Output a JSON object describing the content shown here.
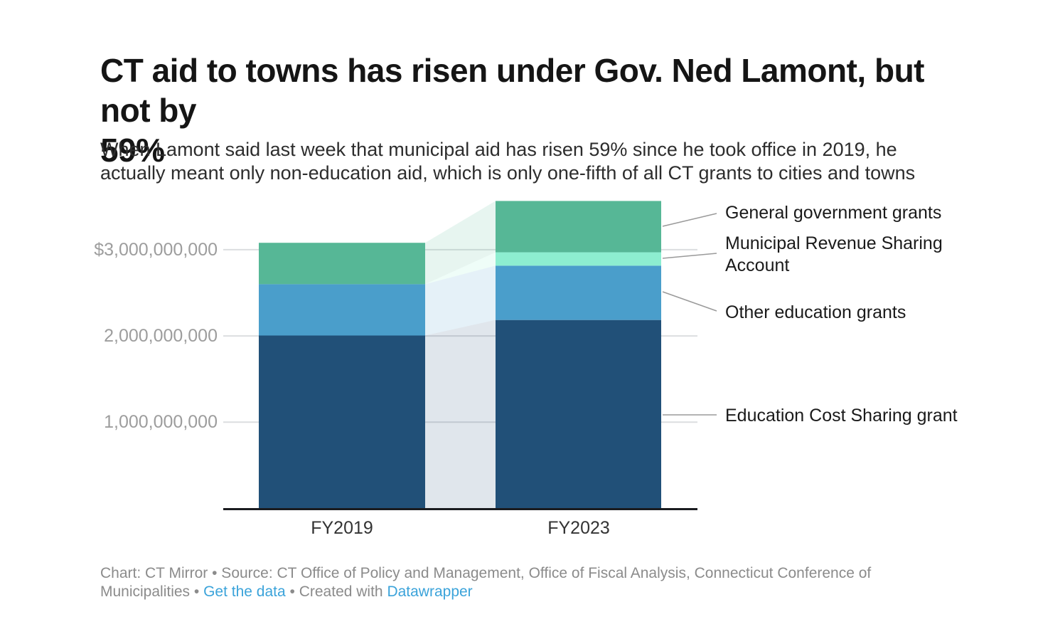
{
  "header": {
    "title_lines": [
      "CT aid to towns has risen under Gov. Ned Lamont, but not by",
      "59%"
    ],
    "subtitle_lines": [
      "When Lamont said last week that municipal aid has risen 59% since he took office in 2019, he",
      "actually meant only non-education aid, which is only one-fifth of all CT grants to cities and towns"
    ]
  },
  "chart_data": {
    "type": "bar",
    "stacked": true,
    "categories": [
      "FY2019",
      "FY2023"
    ],
    "series": [
      {
        "name": "Education Cost Sharing grant",
        "color": "#215078",
        "values": [
          2005000000,
          2185000000
        ]
      },
      {
        "name": "Other education grants",
        "color": "#4a9ecb",
        "values": [
          595000000,
          630000000
        ]
      },
      {
        "name": "Municipal Revenue Sharing Account",
        "color": "#8deed0",
        "values": [
          0,
          155000000
        ]
      },
      {
        "name": "General government grants",
        "color": "#56b796",
        "values": [
          480000000,
          595000000
        ]
      }
    ],
    "totals": [
      3080000000,
      3565000000
    ],
    "y_ticks": [
      "$3,000,000,000",
      "2,000,000,000",
      "1,000,000,000"
    ],
    "y_tick_values": [
      3000000000,
      2000000000,
      1000000000
    ],
    "ylim": [
      0,
      3565000000
    ],
    "grid": "horizontal",
    "legend_position": "right-annotations",
    "gridline_color": "#dcdee0",
    "axis_color": "#1a1c20",
    "leader_line_color": "#9a9a9a"
  },
  "footer": {
    "part1": "Chart: CT Mirror • Source: CT Office of Policy and Management, Office of Fiscal Analysis, Connecticut Conference of Municipalities •",
    "get_data_label": "Get the data",
    "part2": "• Created with",
    "datawrapper_label": "Datawrapper"
  }
}
